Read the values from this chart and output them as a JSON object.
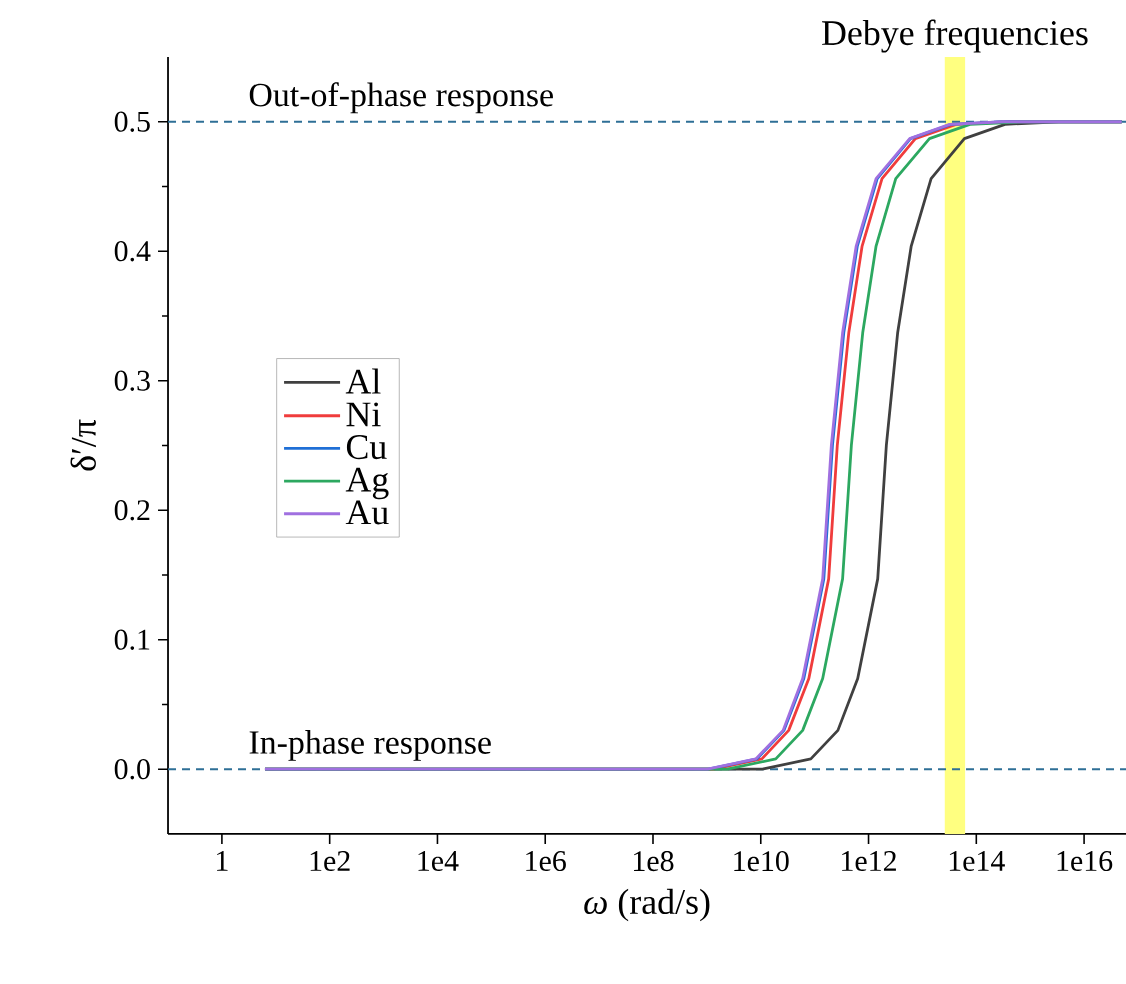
{
  "chart_data": {
    "type": "line",
    "xlabel": "*ω* (rad/s)",
    "ylabel": "δ′/π",
    "log": "x",
    "xlim": [
      0.1,
      6e+16
    ],
    "ylim": [
      -0.05,
      0.55
    ],
    "xticks": [
      1,
      {
        "value": 100,
        "label": "1e2"
      },
      {
        "value": 10000,
        "label": "1e4"
      },
      {
        "value": 1000000,
        "label": "1e6"
      },
      {
        "value": 100000000,
        "label": "1e8"
      },
      {
        "value": 10000000000.0,
        "label": "1e10"
      },
      {
        "value": 1000000000000.0,
        "label": "1e12"
      },
      {
        "value": 100000000000000.0,
        "label": "1e14"
      },
      {
        "value": 1e+16,
        "label": "1e16"
      }
    ],
    "yticks": [
      {
        "value": 0,
        "label": "0.0"
      },
      0.1,
      0.2,
      0.3,
      0.4,
      0.5
    ],
    "legend": "left",
    "grid": false,
    "marker": "none",
    "line_style": "solid",
    "series": [
      {
        "name": "Al",
        "color": "#404040",
        "x": [
          6.3,
          10700000000.0,
          85000000000.0,
          270000000000.0,
          630000000000.0,
          1480000000000.0,
          2140000000000.0,
          3470000000000.0,
          6200000000000.0,
          14500000000000.0,
          60000000000000.0,
          340000000000000.0,
          3400000000000000.0,
          5e+16
        ],
        "values": [
          0,
          0,
          0.008,
          0.03,
          0.07,
          0.147,
          0.25,
          0.337,
          0.404,
          0.456,
          0.487,
          0.498,
          0.5,
          0.5
        ]
      },
      {
        "name": "Ni",
        "color": "#f03c3c",
        "x": [
          6.3,
          1320000000.0,
          10500000000.0,
          33000000000.0,
          78000000000.0,
          182000000000.0,
          263000000000.0,
          430000000000.0,
          760000000000.0,
          1780000000000.0,
          7400000000000.0,
          42000000000000.0,
          420000000000000.0,
          5e+16
        ],
        "values": [
          0,
          0,
          0.008,
          0.03,
          0.07,
          0.147,
          0.25,
          0.337,
          0.404,
          0.456,
          0.487,
          0.498,
          0.5,
          0.5
        ]
      },
      {
        "name": "Cu",
        "color": "#1f6fd6",
        "x": [
          6.3,
          1070000000.0,
          8500000000.0,
          27000000000.0,
          63000000000.0,
          148000000000.0,
          214000000000.0,
          347000000000.0,
          620000000000.0,
          1450000000000.0,
          6000000000000.0,
          34000000000000.0,
          340000000000000.0,
          5e+16
        ],
        "values": [
          0,
          0,
          0.008,
          0.03,
          0.07,
          0.147,
          0.25,
          0.337,
          0.404,
          0.456,
          0.487,
          0.498,
          0.5,
          0.5
        ]
      },
      {
        "name": "Ag",
        "color": "#2ca860",
        "x": [
          6.3,
          2400000000.0,
          19000000000.0,
          60000000000.0,
          141000000000.0,
          330000000000.0,
          480000000000.0,
          780000000000.0,
          1380000000000.0,
          3200000000000.0,
          13500000000000.0,
          76000000000000.0,
          760000000000000.0,
          5e+16
        ],
        "values": [
          0,
          0,
          0.008,
          0.03,
          0.07,
          0.147,
          0.25,
          0.337,
          0.404,
          0.456,
          0.487,
          0.498,
          0.5,
          0.5
        ]
      },
      {
        "name": "Au",
        "color": "#a070e0",
        "x": [
          6.3,
          1020000000.0,
          8100000000.0,
          26000000000.0,
          60000000000.0,
          141000000000.0,
          204000000000.0,
          330000000000.0,
          590000000000.0,
          1380000000000.0,
          5800000000000.0,
          32000000000000.0,
          320000000000000.0,
          5e+16
        ],
        "values": [
          0,
          0,
          0.008,
          0.03,
          0.07,
          0.147,
          0.25,
          0.337,
          0.404,
          0.456,
          0.487,
          0.498,
          0.5,
          0.5
        ]
      }
    ],
    "ref_lines": [
      {
        "axis": "y",
        "value": 0.5,
        "label": "Out-of-phase response",
        "color": "#2e6f96",
        "line_style": "dashed"
      },
      {
        "axis": "y",
        "value": 0,
        "label": "In-phase response",
        "color": "#2e6f96",
        "line_style": "dashed"
      }
    ],
    "bands": [
      {
        "axis": "x",
        "from": 26000000000000.0,
        "to": 62000000000000.0,
        "label": "Debye frequencies",
        "color": "#ffff80"
      }
    ]
  }
}
